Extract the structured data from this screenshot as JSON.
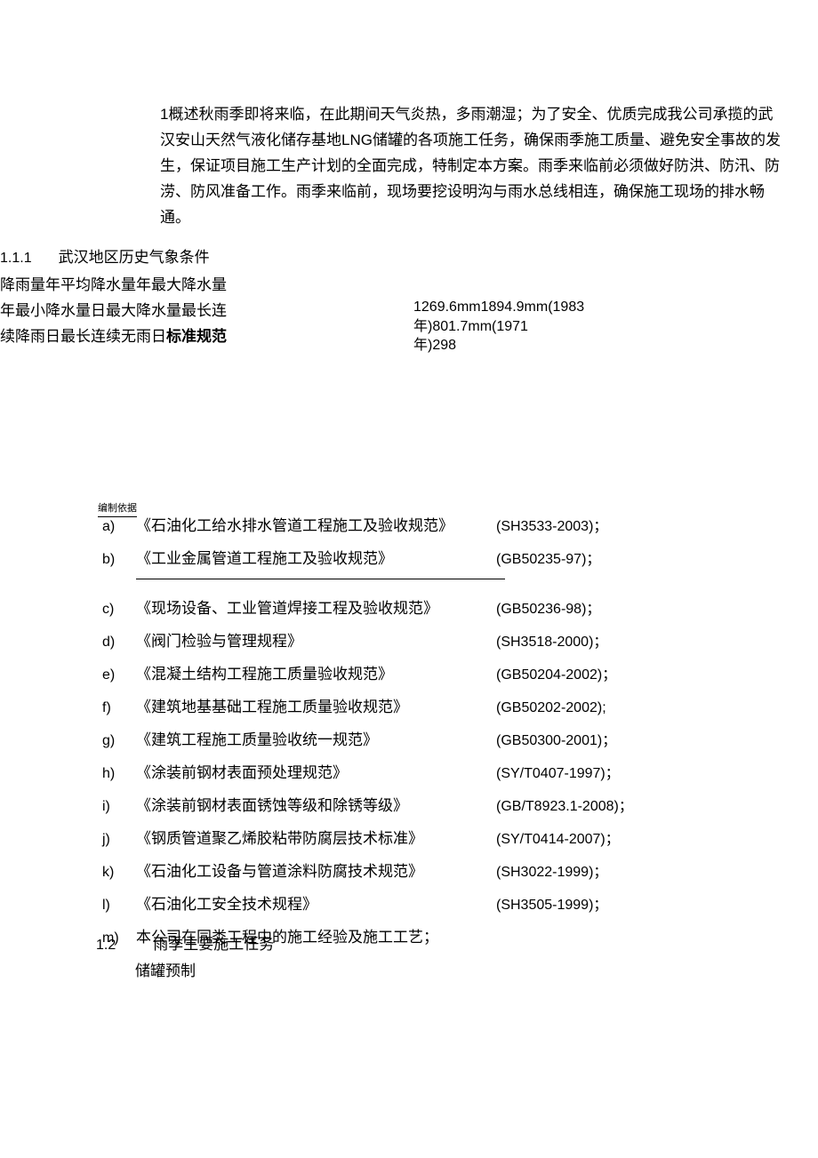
{
  "intro": "1概述秋雨季即将来临，在此期间天气炎热，多雨潮湿；为了安全、优质完成我公司承揽的武汉安山天然气液化储存基地LNG储罐的各项施工任务，确保雨季施工质量、避免安全事故的发生，保证项目施工生产计划的全面完成，特制定本方案。雨季来临前必须做好防洪、防汛、防涝、防风准备工作。雨季来临前，现场要挖设明沟与雨水总线相连，确保施工现场的排水畅通。",
  "section_1_1_1": {
    "num": "1.1.1",
    "title": "武汉地区历史气象条件"
  },
  "rainfall": {
    "line1": "降雨量年平均降水量年最大降水量",
    "line2": "年最小降水量日最大降水量最长连",
    "line3_prefix": "续降雨日最长连续无雨日",
    "line3_bold": "标准规范"
  },
  "rainfall_data": "1269.6mm1894.9mm(1983年)801.7mm(1971年)298",
  "basis_label": "编制依据",
  "standards": [
    {
      "label": "a)",
      "name": "《石油化工给水排水管道工程施工及验收规范》",
      "code": "(SH3533-2003)；"
    },
    {
      "label": "b)",
      "name": "《工业金属管道工程施工及验收规范》",
      "code": "(GB50235-97)；"
    },
    {
      "label": "c)",
      "name": "《现场设备、工业管道焊接工程及验收规范》",
      "code": "(GB50236-98)；"
    },
    {
      "label": "d)",
      "name": "《阀门检验与管理规程》",
      "code": "(SH3518-2000)；"
    },
    {
      "label": "e)",
      "name": "《混凝土结构工程施工质量验收规范》",
      "code": "(GB50204-2002)；"
    },
    {
      "label": "f)",
      "name": "《建筑地基基础工程施工质量验收规范》",
      "code": "(GB50202-2002);"
    },
    {
      "label": "g)",
      "name": "《建筑工程施工质量验收统一规范》",
      "code": "(GB50300-2001)；"
    },
    {
      "label": "h)",
      "name": "《涂装前钢材表面预处理规范》",
      "code": "(SY/T0407-1997)；"
    },
    {
      "label": "i)",
      "name": "《涂装前钢材表面锈蚀等级和除锈等级》",
      "code": "(GB/T8923.1-2008)；"
    },
    {
      "label": "j)",
      "name": "《钢质管道聚乙烯胶粘带防腐层技术标准》",
      "code": "(SY/T0414-2007)；"
    },
    {
      "label": "k)",
      "name": "《石油化工设备与管道涂料防腐技术规范》",
      "code": "(SH3022-1999)；"
    },
    {
      "label": "l)",
      "name": "《石油化工安全技术规程》",
      "code": "(SH3505-1999)；"
    },
    {
      "label": "m)",
      "name": "本公司在同类工程中的施工经验及施工工艺；",
      "code": ""
    }
  ],
  "section_1_2": {
    "num": "1.2",
    "title": "雨季主要施工任务"
  },
  "sub_item": "储罐预制"
}
